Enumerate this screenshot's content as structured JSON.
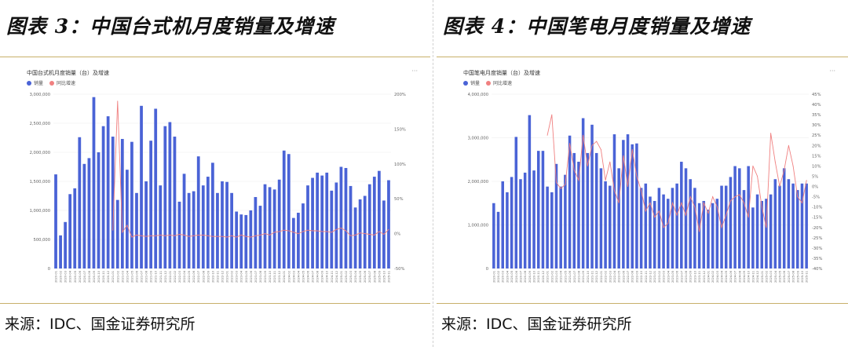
{
  "figures": [
    {
      "fig_title": "图表 3：中国台式机月度销量及增速",
      "source": "来源：IDC、国金证券研究所",
      "chart_title": "中国台式机月度销量（台）及增速",
      "more_label": "···",
      "legend": [
        {
          "label": "销量",
          "color": "#4a63d6"
        },
        {
          "label": "同比增速",
          "color": "#f08080"
        }
      ]
    },
    {
      "fig_title": "图表 4：中国笔电月度销量及增速",
      "source": "来源：IDC、国金证券研究所",
      "chart_title": "中国笔电月度销量（台）及增速",
      "more_label": "···",
      "legend": [
        {
          "label": "销量",
          "color": "#4a63d6"
        },
        {
          "label": "同比增速",
          "color": "#f08080"
        }
      ]
    }
  ],
  "chart_data": [
    {
      "type": "bar",
      "title": "中国台式机月度销量（台）及增速",
      "x": [
        "2020-01",
        "2020-02",
        "2020-03",
        "2020-04",
        "2020-05",
        "2020-06",
        "2020-07",
        "2020-08",
        "2020-09",
        "2020-10",
        "2020-11",
        "2020-12",
        "2021-01",
        "2021-02",
        "2021-03",
        "2021-04",
        "2021-05",
        "2021-06",
        "2021-07",
        "2021-08",
        "2021-09",
        "2021-10",
        "2021-11",
        "2021-12",
        "2022-01",
        "2022-02",
        "2022-03",
        "2022-04",
        "2022-05",
        "2022-06",
        "2022-07",
        "2022-08",
        "2022-09",
        "2022-10",
        "2022-11",
        "2022-12",
        "2023-01",
        "2023-02",
        "2023-03",
        "2023-04",
        "2023-05",
        "2023-06",
        "2023-07",
        "2023-08",
        "2023-09",
        "2023-10",
        "2023-11",
        "2023-12",
        "2024-01",
        "2024-02",
        "2024-03",
        "2024-04",
        "2024-05",
        "2024-06",
        "2024-07",
        "2024-08",
        "2024-09",
        "2024-10",
        "2024-11",
        "2024-12",
        "2025-01",
        "2025-02",
        "2025-03",
        "2025-04",
        "2025-05",
        "2025-06",
        "2025-07",
        "2025-08",
        "2025-09",
        "2025-10",
        "2025-11"
      ],
      "x_tick_labels": [
        "2020-01",
        "2020-02",
        "2020-03",
        "2020-04",
        "2020-05",
        "2020-06",
        "2020-07",
        "2020-08",
        "2020-09",
        "2020-10",
        "2020-11",
        "2020-12",
        "2021-01",
        "2021-02",
        "2021-03",
        "2021-04",
        "2021-05",
        "2021-06",
        "2021-07",
        "2021-08",
        "2021-09",
        "2021-10",
        "2021-11",
        "2021-12",
        "2022-01",
        "2022-02",
        "2022-03",
        "2022-04",
        "2022-05",
        "2022-06",
        "2022-07",
        "2022-08",
        "2022-09",
        "2022-10",
        "2022-11",
        "2022-12",
        "2023-01",
        "2023-02",
        "2023-03",
        "2023-04",
        "2023-05",
        "2023-06",
        "2023-07",
        "2023-08",
        "2023-09",
        "2023-10",
        "2023-11",
        "2023-12",
        "2024-01",
        "2024-02",
        "2024-03",
        "2024-04",
        "2024-05",
        "2024-06",
        "2024-07",
        "2024-08",
        "2024-09",
        "2024-10",
        "2024-11",
        "2024-12",
        "2025-01",
        "2025-02",
        "2025-03",
        "2025-04",
        "2025-05",
        "2025-06",
        "2025-07",
        "2025-08",
        "2025-09",
        "2025-10",
        "2025-11"
      ],
      "series": [
        {
          "name": "销量",
          "kind": "bar",
          "axis": "left",
          "color": "#4a63d6",
          "values": [
            1620000,
            570000,
            800000,
            1280000,
            1380000,
            2260000,
            1800000,
            1900000,
            2950000,
            2000000,
            2450000,
            2620000,
            2270000,
            1180000,
            2230000,
            1700000,
            2180000,
            1300000,
            2800000,
            1500000,
            2200000,
            2750000,
            1430000,
            2450000,
            2520000,
            2270000,
            1150000,
            1630000,
            1300000,
            1330000,
            1930000,
            1430000,
            1580000,
            1820000,
            1300000,
            1500000,
            1490000,
            1300000,
            980000,
            930000,
            920000,
            1000000,
            1230000,
            1080000,
            1450000,
            1400000,
            1360000,
            1530000,
            2030000,
            1970000,
            870000,
            960000,
            1120000,
            1430000,
            1560000,
            1650000,
            1600000,
            1650000,
            1340000,
            1480000,
            1750000,
            1730000,
            1420000,
            1050000,
            1190000,
            1250000,
            1450000,
            1580000,
            1680000,
            1170000,
            1520000
          ]
        },
        {
          "name": "同比增速",
          "kind": "line",
          "axis": "right",
          "color": "#f08080",
          "values": [
            null,
            null,
            null,
            null,
            null,
            null,
            null,
            null,
            null,
            null,
            null,
            null,
            5,
            190,
            2,
            12,
            -5,
            -2,
            -3,
            -4,
            -3,
            -3,
            -2,
            -3,
            -2,
            -3,
            -1,
            -2,
            -4,
            -3,
            -2,
            -2,
            -3,
            -4,
            -4,
            -4,
            -5,
            -3,
            -5,
            -2,
            -4,
            -5,
            -3,
            -2,
            0,
            -2,
            2,
            3,
            5,
            4,
            2,
            0,
            3,
            5,
            4,
            4,
            3,
            3,
            2,
            6,
            8,
            4,
            -3,
            -2,
            1,
            0,
            -1,
            -2,
            3,
            -1,
            6
          ]
        }
      ],
      "y_left": {
        "lim": [
          0,
          3000000
        ],
        "ticks": [
          0,
          500000,
          1000000,
          1500000,
          2000000,
          2500000,
          3000000
        ],
        "tick_labels": [
          "0",
          "500,000",
          "1,000,000",
          "1,500,000",
          "2,000,000",
          "2,500,000",
          "3,000,000"
        ]
      },
      "y_right": {
        "lim": [
          -50,
          200
        ],
        "ticks": [
          -50,
          0,
          50,
          100,
          150,
          200
        ],
        "tick_labels": [
          "-50%",
          "0%",
          "50%",
          "100%",
          "150%",
          "200%"
        ]
      },
      "legend_position": "top-left"
    },
    {
      "type": "bar",
      "title": "中国笔电月度销量（台）及增速",
      "x": [
        "2020-01",
        "2020-02",
        "2020-03",
        "2020-04",
        "2020-05",
        "2020-06",
        "2020-07",
        "2020-08",
        "2020-09",
        "2020-10",
        "2020-11",
        "2020-12",
        "2021-01",
        "2021-02",
        "2021-03",
        "2021-04",
        "2021-05",
        "2021-06",
        "2021-07",
        "2021-08",
        "2021-09",
        "2021-10",
        "2021-11",
        "2021-12",
        "2022-01",
        "2022-02",
        "2022-03",
        "2022-04",
        "2022-05",
        "2022-06",
        "2022-07",
        "2022-08",
        "2022-09",
        "2022-10",
        "2022-11",
        "2022-12",
        "2023-01",
        "2023-02",
        "2023-03",
        "2023-04",
        "2023-05",
        "2023-06",
        "2023-07",
        "2023-08",
        "2023-09",
        "2023-10",
        "2023-11",
        "2023-12",
        "2024-01",
        "2024-02",
        "2024-03",
        "2024-04",
        "2024-05",
        "2024-06",
        "2024-07",
        "2024-08",
        "2024-09",
        "2024-10",
        "2024-11",
        "2024-12",
        "2025-01",
        "2025-02",
        "2025-03",
        "2025-04",
        "2025-05",
        "2025-06",
        "2025-07",
        "2025-08",
        "2025-09",
        "2025-10",
        "2025-11"
      ],
      "x_tick_labels": [
        "2020-01",
        "2020-02",
        "2020-03",
        "2020-04",
        "2020-05",
        "2020-06",
        "2020-07",
        "2020-08",
        "2020-09",
        "2020-10",
        "2020-11",
        "2020-12",
        "2021-01",
        "2021-02",
        "2021-03",
        "2021-04",
        "2021-05",
        "2021-06",
        "2021-07",
        "2021-08",
        "2021-09",
        "2021-10",
        "2021-11",
        "2021-12",
        "2022-01",
        "2022-02",
        "2022-03",
        "2022-04",
        "2022-05",
        "2022-06",
        "2022-07",
        "2022-08",
        "2022-09",
        "2022-10",
        "2022-11",
        "2022-12",
        "2023-01",
        "2023-02",
        "2023-03",
        "2023-04",
        "2023-05",
        "2023-06",
        "2023-07",
        "2023-08",
        "2023-09",
        "2023-10",
        "2023-11",
        "2023-12",
        "2024-01",
        "2024-02",
        "2024-03",
        "2024-04",
        "2024-05",
        "2024-06",
        "2024-07",
        "2024-08",
        "2024-09",
        "2024-10",
        "2024-11",
        "2024-12",
        "2025-01",
        "2025-02",
        "2025-03",
        "2025-04",
        "2025-05",
        "2025-06",
        "2025-07",
        "2025-08",
        "2025-09",
        "2025-10",
        "2025-11"
      ],
      "series": [
        {
          "name": "销量",
          "kind": "bar",
          "axis": "left",
          "color": "#4a63d6",
          "values": [
            1500000,
            1300000,
            2000000,
            1750000,
            2100000,
            3020000,
            2050000,
            2200000,
            3520000,
            2250000,
            2700000,
            2700000,
            1880000,
            1750000,
            2400000,
            1880000,
            2150000,
            3050000,
            2650000,
            2450000,
            3450000,
            2650000,
            3300000,
            2650000,
            2300000,
            2000000,
            1900000,
            3080000,
            2300000,
            2950000,
            3080000,
            2850000,
            2870000,
            1850000,
            1950000,
            1650000,
            1550000,
            1850000,
            1700000,
            1600000,
            1850000,
            1950000,
            2450000,
            2300000,
            2050000,
            1850000,
            1500000,
            1550000,
            1350000,
            1500000,
            1600000,
            1900000,
            1900000,
            2100000,
            2350000,
            2300000,
            1800000,
            2350000,
            1400000,
            1700000,
            1550000,
            1600000,
            1700000,
            2050000,
            1900000,
            2300000,
            2050000,
            1950000,
            1800000,
            1950000,
            1950000
          ]
        },
        {
          "name": "同比增速",
          "kind": "line",
          "axis": "right",
          "color": "#f08080",
          "values": [
            null,
            null,
            null,
            null,
            null,
            null,
            null,
            null,
            null,
            null,
            null,
            null,
            25,
            35,
            2,
            -1,
            1,
            21,
            8,
            3,
            25,
            10,
            20,
            22,
            18,
            3,
            12,
            -2,
            -8,
            15,
            0,
            18,
            5,
            -2,
            -12,
            -8,
            -15,
            -12,
            -20,
            -18,
            -8,
            -14,
            -8,
            -14,
            -5,
            -10,
            -22,
            -8,
            -13,
            -5,
            -10,
            -20,
            -14,
            -7,
            -5,
            -4,
            -8,
            -15,
            10,
            5,
            -10,
            -20,
            26,
            12,
            0,
            8,
            20,
            10,
            -5,
            -8,
            3
          ]
        }
      ],
      "y_left": {
        "lim": [
          0,
          4000000
        ],
        "ticks": [
          0,
          1000000,
          2000000,
          3000000,
          4000000
        ],
        "tick_labels": [
          "0",
          "1,000,000",
          "2,000,000",
          "3,000,000",
          "4,000,000"
        ]
      },
      "y_right": {
        "lim": [
          -40,
          45
        ],
        "ticks": [
          -40,
          -35,
          -30,
          -25,
          -20,
          -15,
          -10,
          -5,
          0,
          5,
          10,
          15,
          20,
          25,
          30,
          35,
          40,
          45
        ],
        "tick_labels": [
          "-40%",
          "-35%",
          "-30%",
          "-25%",
          "-20%",
          "-15%",
          "-10%",
          "-5%",
          "0%",
          "5%",
          "10%",
          "15%",
          "20%",
          "25%",
          "30%",
          "35%",
          "40%",
          "45%"
        ]
      },
      "legend_position": "top-left"
    }
  ]
}
